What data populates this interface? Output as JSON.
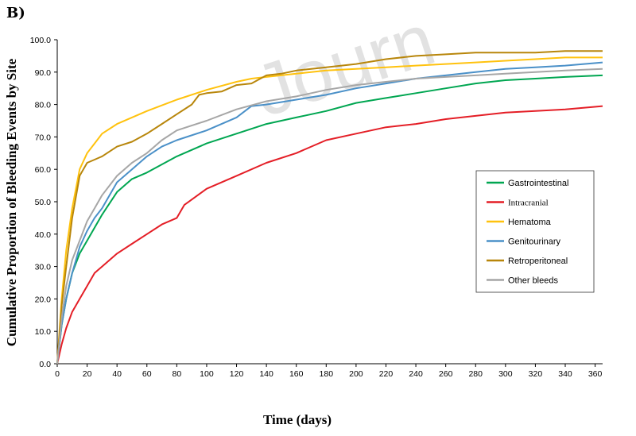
{
  "panel_label": "B)",
  "watermark": "Journ",
  "chart_data": {
    "type": "line",
    "xlabel": "Time (days)",
    "ylabel": "Cumulative Proportion of Bleeding Events by Site",
    "xlim": [
      0,
      365
    ],
    "ylim": [
      0,
      100
    ],
    "x_ticks": [
      0,
      20,
      40,
      60,
      80,
      100,
      120,
      140,
      160,
      180,
      200,
      220,
      240,
      260,
      280,
      300,
      320,
      340,
      360
    ],
    "y_ticks": [
      0,
      10,
      20,
      30,
      40,
      50,
      60,
      70,
      80,
      90,
      100
    ],
    "y_tick_labels": [
      "0.0",
      "10.0",
      "20.0",
      "30.0",
      "40.0",
      "50.0",
      "60.0",
      "70.0",
      "80.0",
      "90.0",
      "100.0"
    ],
    "grid": false,
    "legend_position": "right",
    "series": [
      {
        "name": "Gastrointestinal",
        "color": "#00a651",
        "x": [
          0,
          3,
          6,
          10,
          15,
          20,
          25,
          30,
          40,
          50,
          60,
          80,
          100,
          120,
          140,
          160,
          180,
          200,
          220,
          240,
          260,
          280,
          300,
          320,
          340,
          365
        ],
        "y": [
          0,
          12,
          20,
          28,
          34,
          38,
          42,
          46,
          53,
          57,
          59,
          64,
          68,
          71,
          74,
          76,
          78,
          80.5,
          82,
          83.5,
          85,
          86.5,
          87.5,
          88,
          88.5,
          89
        ]
      },
      {
        "name": "Intracranial",
        "color": "#e41e26",
        "x": [
          0,
          3,
          6,
          10,
          15,
          20,
          25,
          30,
          40,
          50,
          60,
          70,
          80,
          85,
          100,
          120,
          140,
          160,
          180,
          200,
          220,
          240,
          260,
          280,
          300,
          320,
          340,
          365
        ],
        "y": [
          0,
          6,
          11,
          16,
          20,
          24,
          28,
          30,
          34,
          37,
          40,
          43,
          45,
          49,
          54,
          58,
          62,
          65,
          69,
          71,
          73,
          74,
          75.5,
          76.5,
          77.5,
          78,
          78.5,
          79.5
        ]
      },
      {
        "name": "Hematoma",
        "color": "#ffc20e",
        "x": [
          0,
          3,
          6,
          10,
          15,
          20,
          25,
          30,
          40,
          50,
          60,
          80,
          100,
          120,
          130,
          140,
          160,
          180,
          200,
          220,
          240,
          260,
          280,
          300,
          320,
          340,
          365
        ],
        "y": [
          0,
          20,
          35,
          48,
          60,
          65,
          68,
          71,
          74,
          76,
          78,
          81.5,
          84.5,
          87,
          88,
          88.5,
          89.5,
          90.5,
          91,
          91.5,
          92,
          92.5,
          93,
          93.5,
          94,
          94.5,
          94.5
        ]
      },
      {
        "name": "Genitourinary",
        "color": "#4a90c8",
        "x": [
          0,
          3,
          6,
          10,
          15,
          20,
          25,
          30,
          40,
          50,
          60,
          70,
          80,
          100,
          120,
          130,
          140,
          160,
          180,
          200,
          220,
          240,
          260,
          280,
          300,
          320,
          340,
          365
        ],
        "y": [
          0,
          12,
          20,
          28,
          36,
          41,
          45,
          48,
          56,
          60,
          64,
          67,
          69,
          72,
          76,
          79.5,
          80,
          81.5,
          83,
          85,
          86.5,
          88,
          89,
          90,
          91,
          91.5,
          92,
          93
        ]
      },
      {
        "name": "Retroperitoneal",
        "color": "#b8860b",
        "x": [
          0,
          3,
          6,
          10,
          15,
          20,
          25,
          30,
          40,
          50,
          60,
          70,
          80,
          90,
          95,
          100,
          110,
          120,
          130,
          140,
          150,
          160,
          180,
          200,
          220,
          240,
          260,
          280,
          300,
          320,
          340,
          365
        ],
        "y": [
          0,
          18,
          30,
          45,
          58,
          62,
          63,
          64,
          67,
          68.5,
          71,
          74,
          77,
          80,
          83,
          83.5,
          84,
          86,
          86.5,
          89,
          89.5,
          90.5,
          91.5,
          92.5,
          94,
          95,
          95.5,
          96,
          96,
          96,
          96.5,
          96.5
        ]
      },
      {
        "name": "Other bleeds",
        "color": "#a6a6a6",
        "x": [
          0,
          3,
          6,
          10,
          15,
          20,
          25,
          30,
          40,
          50,
          60,
          70,
          80,
          100,
          120,
          140,
          160,
          180,
          200,
          220,
          240,
          260,
          280,
          300,
          320,
          340,
          365
        ],
        "y": [
          0,
          14,
          24,
          32,
          38,
          44,
          48,
          52,
          58,
          62,
          65,
          69,
          72,
          75,
          78.5,
          81,
          82.5,
          84.5,
          86,
          87,
          88,
          88.5,
          89,
          89.5,
          90,
          90.5,
          91
        ]
      }
    ]
  }
}
